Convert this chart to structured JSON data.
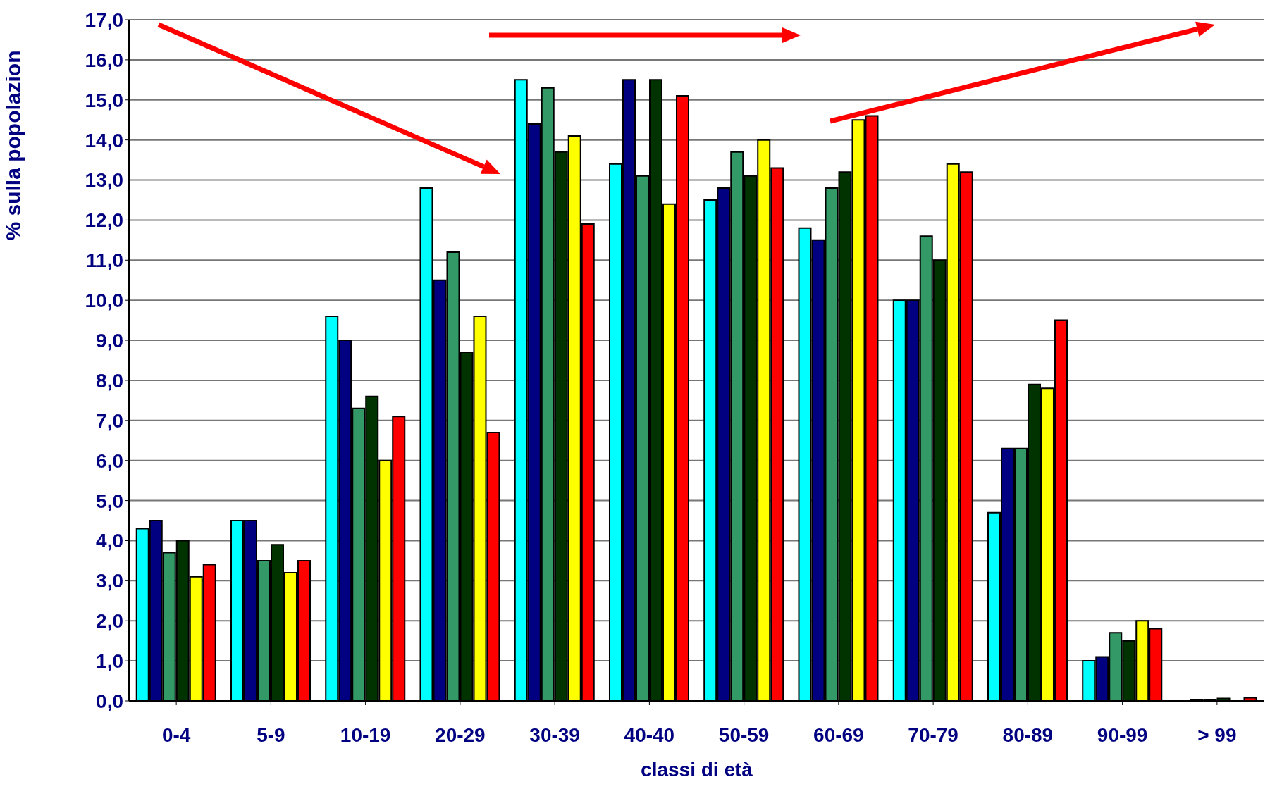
{
  "chart_data": {
    "type": "bar",
    "xlabel": "classi di età",
    "ylabel": "% sulla popolazion",
    "categories": [
      "0-4",
      "5-9",
      "10-19",
      "20-29",
      "30-39",
      "40-40",
      "50-59",
      "60-69",
      "70-79",
      "80-89",
      "90-99",
      "> 99"
    ],
    "series": [
      {
        "color": "#00ffff",
        "values": [
          4.3,
          4.5,
          9.6,
          12.8,
          15.5,
          13.4,
          12.5,
          11.8,
          10.0,
          4.7,
          1.0,
          0
        ]
      },
      {
        "color": "#000080",
        "values": [
          4.5,
          4.5,
          9.0,
          10.5,
          14.4,
          15.5,
          12.8,
          11.5,
          10.0,
          6.3,
          1.1,
          0.03
        ]
      },
      {
        "color": "#339966",
        "values": [
          3.7,
          3.5,
          7.3,
          11.2,
          15.3,
          13.1,
          13.7,
          12.8,
          11.6,
          6.3,
          1.7,
          0.03
        ]
      },
      {
        "color": "#003300",
        "values": [
          4.0,
          3.9,
          7.6,
          8.7,
          13.7,
          15.5,
          13.1,
          13.2,
          11.0,
          7.9,
          1.5,
          0.06
        ]
      },
      {
        "color": "#ffff00",
        "values": [
          3.1,
          3.2,
          6.0,
          9.6,
          14.1,
          12.4,
          14.0,
          14.5,
          13.4,
          7.8,
          2.0,
          null
        ]
      },
      {
        "color": "#ff0000",
        "values": [
          3.4,
          3.5,
          7.1,
          6.7,
          11.9,
          15.1,
          13.3,
          14.6,
          13.2,
          9.5,
          1.8,
          0.08
        ]
      }
    ],
    "ylim": [
      0,
      17
    ],
    "yticks": [
      {
        "value": 0,
        "label": "0,0"
      },
      {
        "value": 1,
        "label": "1,0"
      },
      {
        "value": 2,
        "label": "2,0"
      },
      {
        "value": 3,
        "label": "3,0"
      },
      {
        "value": 4,
        "label": "4,0"
      },
      {
        "value": 5,
        "label": "5,0"
      },
      {
        "value": 6,
        "label": "6,0"
      },
      {
        "value": 7,
        "label": "7,0"
      },
      {
        "value": 8,
        "label": "8,0"
      },
      {
        "value": 9,
        "label": "9,0"
      },
      {
        "value": 10,
        "label": "10,0"
      },
      {
        "value": 11,
        "label": "11,0"
      },
      {
        "value": 12,
        "label": "12,0"
      },
      {
        "value": 13,
        "label": "13,0"
      },
      {
        "value": 14,
        "label": "14,0"
      },
      {
        "value": 15,
        "label": "15,0"
      },
      {
        "value": 16,
        "label": "16,0"
      },
      {
        "value": 17,
        "label": "17,0"
      }
    ],
    "grid": "y"
  }
}
